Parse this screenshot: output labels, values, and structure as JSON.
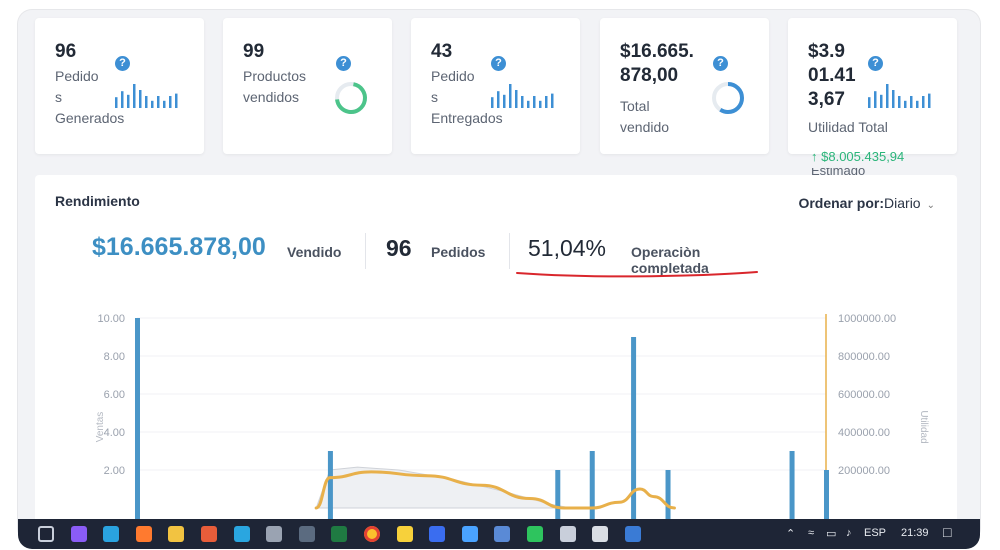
{
  "cards": [
    {
      "value": "96",
      "label_lines": [
        "Pedido",
        "s",
        "Generados"
      ],
      "visual": "sparkline"
    },
    {
      "value": "99",
      "label_lines": [
        "Productos",
        "vendidos"
      ],
      "visual": "donut",
      "donut_color": "#4cc48a"
    },
    {
      "value": "43",
      "label_lines": [
        "Pedido",
        "s",
        "Entregados"
      ],
      "visual": "sparkline"
    },
    {
      "value_lines": [
        "$16.665.",
        "878,00"
      ],
      "label_lines": [
        "Total",
        "vendido"
      ],
      "visual": "donut",
      "donut_color": "#3d8fd4"
    },
    {
      "value_lines": [
        "$3.9",
        "01.41",
        "3,67"
      ],
      "label_lines": [
        "Utilidad Total"
      ],
      "visual": "sparkline",
      "trend": "$8.005.435,94",
      "trend_clipped": "Estimado"
    }
  ],
  "help_icon": "question-icon",
  "panel": {
    "title": "Rendimiento",
    "order_label": "Ordenar por:",
    "order_value": "Diario",
    "sold_amount": "$16.665.878,00",
    "sold_label": "Vendido",
    "orders_count": "96",
    "orders_label": "Pedidos",
    "completion_pct": "51,04%",
    "completion_label": "Operaciòn completada"
  },
  "colors": {
    "accent_blue": "#3d8fc3",
    "bar_blue": "#4a96c8",
    "line_orange": "#e8b04a",
    "area_gray": "#cfd2d8",
    "underline_red": "#d9262c",
    "trend_green": "#2bb57a"
  },
  "chart_data": {
    "type": "bar",
    "ylabel": "Ventas",
    "y2label": "Utilidad",
    "ylim": [
      0,
      10
    ],
    "y2lim": [
      0,
      1000000
    ],
    "y_ticks": [
      "10.00",
      "8.00",
      "6.00",
      "4.00",
      "2.00"
    ],
    "y2_ticks": [
      "1000000.00",
      "800000.00",
      "600000.00",
      "400000.00",
      "200000.00"
    ],
    "x_range": [
      0,
      100
    ],
    "bars": [
      {
        "x": 0,
        "y": 10
      },
      {
        "x": 28,
        "y": 3
      },
      {
        "x": 61,
        "y": 2
      },
      {
        "x": 66,
        "y": 3
      },
      {
        "x": 72,
        "y": 9
      },
      {
        "x": 77,
        "y": 2
      },
      {
        "x": 95,
        "y": 3
      },
      {
        "x": 100,
        "y": 2
      }
    ],
    "series": [
      {
        "name": "Utilidad",
        "type": "line",
        "color": "#e8b04a",
        "points": [
          [
            26,
            0
          ],
          [
            28,
            160000
          ],
          [
            34,
            190000
          ],
          [
            42,
            170000
          ],
          [
            50,
            120000
          ],
          [
            57,
            50000
          ],
          [
            62,
            0
          ],
          [
            66,
            0
          ],
          [
            70,
            30000
          ],
          [
            73,
            100000
          ],
          [
            75,
            60000
          ],
          [
            78,
            0
          ]
        ]
      },
      {
        "name": "area",
        "type": "area",
        "color": "#cfd2d8",
        "points": [
          [
            26,
            0
          ],
          [
            28,
            200000
          ],
          [
            32,
            215000
          ],
          [
            38,
            200000
          ],
          [
            46,
            150000
          ],
          [
            54,
            80000
          ],
          [
            60,
            20000
          ],
          [
            63,
            0
          ]
        ]
      }
    ]
  },
  "taskbar": {
    "icons": [
      "task-view-icon",
      "copilot-icon",
      "edge-icon",
      "firefox-icon",
      "file-explorer-icon",
      "store-icon",
      "telegram-icon",
      "usb-icon",
      "calculator-icon",
      "excel-icon",
      "chrome-icon",
      "sticky-notes-icon",
      "zoom-icon",
      "photos-icon",
      "mail-icon",
      "whatsapp-icon",
      "security-icon",
      "notion-icon",
      "settings-icon"
    ],
    "icon_colors": [
      "#c9cfdb",
      "#8a5cf6",
      "#2aa3e0",
      "#ff7a2f",
      "#f2c341",
      "#e85d3a",
      "#2aa6e0",
      "#9aa3b2",
      "#5b6b80",
      "#1f7a42",
      "#e9e9e9",
      "#f7d13b",
      "#3a6df0",
      "#4aa3ff",
      "#5a8ad6",
      "#2ec45e",
      "#c9cfdb",
      "#d9dde4",
      "#3a7bd5"
    ],
    "tray_lang": "ESP",
    "time": "21:39"
  }
}
